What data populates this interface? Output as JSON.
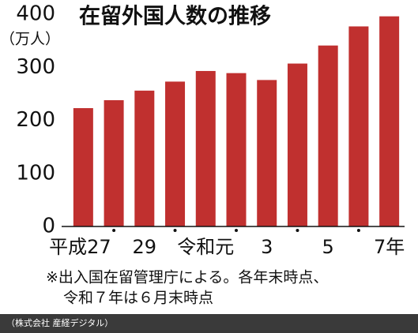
{
  "chart_data": {
    "type": "bar",
    "title": "在留外国人数の推移",
    "y_label": "（万人）",
    "categories": [
      "平成27",
      null,
      "29",
      null,
      "令和元",
      null,
      "3",
      null,
      "5",
      null,
      "7年"
    ],
    "values": [
      223,
      238,
      256,
      273,
      293,
      289,
      276,
      307,
      341,
      377,
      396
    ],
    "color": "#c0302f",
    "ylim": [
      0,
      400
    ],
    "yticks": [
      0,
      100,
      200,
      300,
      400
    ],
    "notes": [
      "※出入国在留管理庁による。各年末時点、",
      "令和７年は６月末時点"
    ],
    "credit": "（株式会社 産経デジタル）"
  }
}
